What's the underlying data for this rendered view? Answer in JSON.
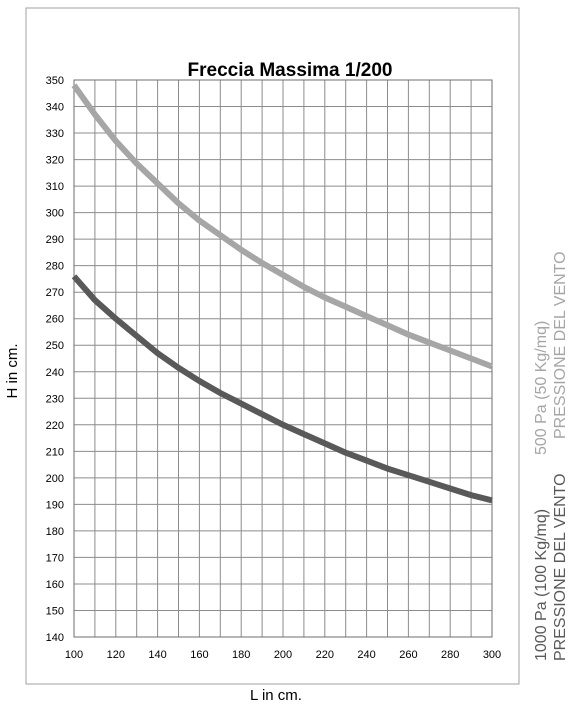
{
  "chart_data": {
    "type": "line",
    "title": "Freccia Massima 1/200",
    "xlabel": "L in cm.",
    "ylabel": "H  in cm.",
    "xlim": [
      100,
      300
    ],
    "ylim": [
      140,
      350
    ],
    "x_ticks": [
      100,
      120,
      140,
      160,
      180,
      200,
      220,
      240,
      260,
      280,
      300
    ],
    "y_ticks": [
      140,
      150,
      160,
      170,
      180,
      190,
      200,
      210,
      220,
      230,
      240,
      250,
      260,
      270,
      280,
      290,
      300,
      310,
      320,
      330,
      340,
      350
    ],
    "grid": true,
    "series": [
      {
        "name_lines": [
          "500 Pa (50 Kg/mq)",
          "PRESSIONE DEL VENTO"
        ],
        "color": "#a6a6a6",
        "x": [
          100,
          110,
          120,
          130,
          140,
          150,
          160,
          170,
          180,
          190,
          200,
          210,
          220,
          230,
          240,
          250,
          260,
          270,
          280,
          290,
          300
        ],
        "y": [
          348,
          337,
          327,
          318.5,
          311,
          303.5,
          297,
          291.5,
          286,
          281,
          276.5,
          272,
          268,
          264.5,
          261,
          257.5,
          254,
          251,
          248,
          245,
          242
        ]
      },
      {
        "name_lines": [
          "1000 Pa (100 Kg/mq)",
          "PRESSIONE DEL VENTO"
        ],
        "color": "#595959",
        "x": [
          100,
          110,
          120,
          130,
          140,
          150,
          160,
          170,
          180,
          190,
          200,
          210,
          220,
          230,
          240,
          250,
          260,
          270,
          280,
          290,
          300
        ],
        "y": [
          276,
          267,
          260,
          253.5,
          247,
          241.5,
          236.5,
          232,
          228,
          224,
          220,
          216.5,
          213,
          209.5,
          206.5,
          203.5,
          201,
          198.5,
          196,
          193.5,
          191.5
        ]
      }
    ]
  }
}
